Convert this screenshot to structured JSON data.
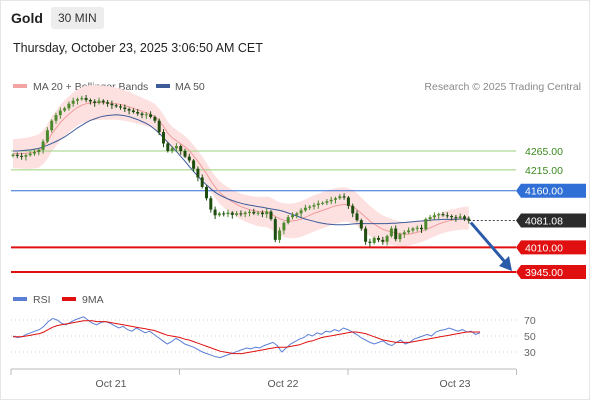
{
  "header": {
    "instrument": "Gold",
    "timeframe": "30 MIN",
    "timestamp": "Thursday, October 23, 2025 3:06:50 AM CET"
  },
  "legend_price": [
    {
      "label": "MA 20 + Bollinger Bands",
      "color": "#f4a3a3"
    },
    {
      "label": "MA 50",
      "color": "#3d5a99"
    }
  ],
  "credit": "Research © 2025 Trading Central",
  "legend_rsi": [
    {
      "label": "RSI",
      "color": "#5b7fd6"
    },
    {
      "label": "9MA",
      "color": "#e01010"
    }
  ],
  "colors": {
    "up_candle": "#4d8a2e",
    "down_candle": "#1f4d10",
    "resistance_line": "#9bd07c",
    "pivot_line": "#2f6fd6",
    "support_line": "#e01010",
    "bollinger_fill": "#fde1e1",
    "ma20": "#f29a9a",
    "ma50": "#3d5a99",
    "arrow": "#2a5aa8"
  },
  "chart_data": [
    {
      "type": "candlestick",
      "x_ticks": [
        "Oct 21",
        "Oct 22",
        "Oct 23"
      ],
      "levels": [
        {
          "value": 4265.0,
          "label": "4265.00",
          "kind": "resistance"
        },
        {
          "value": 4215.0,
          "label": "4215.00",
          "kind": "resistance"
        },
        {
          "value": 4160.0,
          "label": "4160.00",
          "kind": "pivot"
        },
        {
          "value": 4081.08,
          "label": "4081.08",
          "kind": "last_price"
        },
        {
          "value": 4010.0,
          "label": "4010.00",
          "kind": "support"
        },
        {
          "value": 3945.0,
          "label": "3945.00",
          "kind": "support"
        }
      ],
      "close": [
        4255,
        4252,
        4250,
        4254,
        4258,
        4262,
        4268,
        4290,
        4320,
        4345,
        4360,
        4372,
        4378,
        4390,
        4398,
        4402,
        4405,
        4400,
        4396,
        4392,
        4398,
        4394,
        4390,
        4386,
        4383,
        4380,
        4376,
        4372,
        4368,
        4364,
        4360,
        4362,
        4355,
        4345,
        4315,
        4285,
        4265,
        4272,
        4278,
        4265,
        4250,
        4240,
        4218,
        4195,
        4170,
        4140,
        4110,
        4095,
        4100,
        4098,
        4102,
        4096,
        4100,
        4098,
        4102,
        4104,
        4100,
        4102,
        4098,
        4105,
        4085,
        4030,
        4055,
        4075,
        4090,
        4095,
        4100,
        4108,
        4115,
        4118,
        4122,
        4126,
        4128,
        4132,
        4136,
        4140,
        4145,
        4142,
        4120,
        4100,
        4082,
        4060,
        4025,
        4022,
        4035,
        4030,
        4025,
        4040,
        4060,
        4032,
        4045,
        4050,
        4055,
        4060,
        4062,
        4058,
        4085,
        4090,
        4095,
        4098,
        4095,
        4093,
        4090,
        4088,
        4092,
        4086,
        4081
      ],
      "ma20": [
        4258,
        4258,
        4258,
        4259,
        4260,
        4262,
        4265,
        4275,
        4290,
        4310,
        4325,
        4340,
        4352,
        4362,
        4372,
        4380,
        4386,
        4390,
        4392,
        4393,
        4393,
        4393,
        4392,
        4391,
        4390,
        4388,
        4385,
        4382,
        4378,
        4374,
        4370,
        4366,
        4362,
        4356,
        4345,
        4330,
        4312,
        4300,
        4292,
        4284,
        4276,
        4266,
        4252,
        4238,
        4222,
        4205,
        4186,
        4170,
        4156,
        4146,
        4138,
        4130,
        4124,
        4118,
        4114,
        4110,
        4107,
        4105,
        4104,
        4104,
        4100,
        4092,
        4086,
        4082,
        4080,
        4080,
        4082,
        4085,
        4090,
        4095,
        4100,
        4104,
        4108,
        4112,
        4116,
        4120,
        4122,
        4124,
        4122,
        4118,
        4110,
        4100,
        4090,
        4080,
        4072,
        4064,
        4058,
        4054,
        4051,
        4048,
        4046,
        4045,
        4045,
        4047,
        4050,
        4053,
        4057,
        4062,
        4067,
        4072,
        4076,
        4079,
        4082,
        4084,
        4086,
        4087,
        4088
      ],
      "ma50": [
        4265,
        4265,
        4266,
        4267,
        4268,
        4270,
        4272,
        4276,
        4280,
        4285,
        4290,
        4296,
        4302,
        4310,
        4318,
        4326,
        4333,
        4340,
        4346,
        4350,
        4354,
        4357,
        4359,
        4360,
        4361,
        4360,
        4358,
        4356,
        4352,
        4348,
        4343,
        4338,
        4331,
        4322,
        4312,
        4300,
        4288,
        4276,
        4264,
        4251,
        4238,
        4224,
        4211,
        4198,
        4186,
        4175,
        4165,
        4156,
        4149,
        4143,
        4138,
        4134,
        4130,
        4127,
        4124,
        4122,
        4120,
        4118,
        4116,
        4114,
        4112,
        4110,
        4108,
        4105,
        4101,
        4097,
        4093,
        4089,
        4085,
        4082,
        4079,
        4076,
        4074,
        4072,
        4071,
        4070,
        4070,
        4070,
        4071,
        4072,
        4073,
        4073,
        4073,
        4073,
        4073,
        4073,
        4073,
        4073,
        4074,
        4074,
        4075,
        4076,
        4077,
        4078,
        4079,
        4080,
        4081,
        4082,
        4083,
        4083,
        4084,
        4084,
        4084,
        4085,
        4085,
        4085,
        4085
      ]
    },
    {
      "type": "line",
      "title": "RSI",
      "y_ticks": [
        70,
        50,
        30
      ],
      "ylim": [
        15,
        85
      ],
      "series": [
        {
          "name": "RSI",
          "values": [
            50,
            48,
            49,
            52,
            54,
            56,
            58,
            62,
            68,
            72,
            70,
            66,
            64,
            67,
            70,
            72,
            74,
            70,
            66,
            64,
            67,
            68,
            66,
            63,
            60,
            62,
            58,
            56,
            60,
            57,
            54,
            56,
            52,
            48,
            44,
            40,
            43,
            47,
            44,
            40,
            38,
            36,
            33,
            30,
            28,
            26,
            24,
            23,
            25,
            27,
            29,
            31,
            33,
            35,
            34,
            36,
            35,
            38,
            40,
            42,
            38,
            30,
            35,
            40,
            43,
            46,
            48,
            52,
            50,
            54,
            52,
            56,
            55,
            58,
            56,
            60,
            58,
            55,
            52,
            48,
            45,
            42,
            40,
            42,
            44,
            40,
            38,
            42,
            45,
            40,
            42,
            46,
            48,
            50,
            52,
            50,
            55,
            57,
            58,
            60,
            58,
            56,
            58,
            55,
            56,
            52,
            54
          ]
        },
        {
          "name": "9MA",
          "values": [
            49,
            49,
            49,
            50,
            51,
            52,
            53,
            55,
            58,
            61,
            63,
            64,
            65,
            66,
            67,
            68,
            69,
            69,
            69,
            68,
            68,
            68,
            67,
            66,
            65,
            64,
            63,
            62,
            61,
            60,
            59,
            58,
            57,
            55,
            53,
            51,
            50,
            49,
            48,
            46,
            45,
            43,
            41,
            39,
            37,
            35,
            33,
            31,
            30,
            29,
            28,
            28,
            28,
            29,
            30,
            31,
            32,
            33,
            34,
            35,
            36,
            36,
            36,
            37,
            38,
            39,
            41,
            43,
            44,
            46,
            48,
            49,
            50,
            51,
            52,
            53,
            54,
            55,
            55,
            54,
            53,
            51,
            49,
            47,
            45,
            44,
            43,
            42,
            42,
            42,
            42,
            43,
            44,
            45,
            46,
            47,
            48,
            49,
            50,
            51,
            52,
            53,
            54,
            55,
            55,
            55,
            55
          ]
        }
      ]
    }
  ]
}
